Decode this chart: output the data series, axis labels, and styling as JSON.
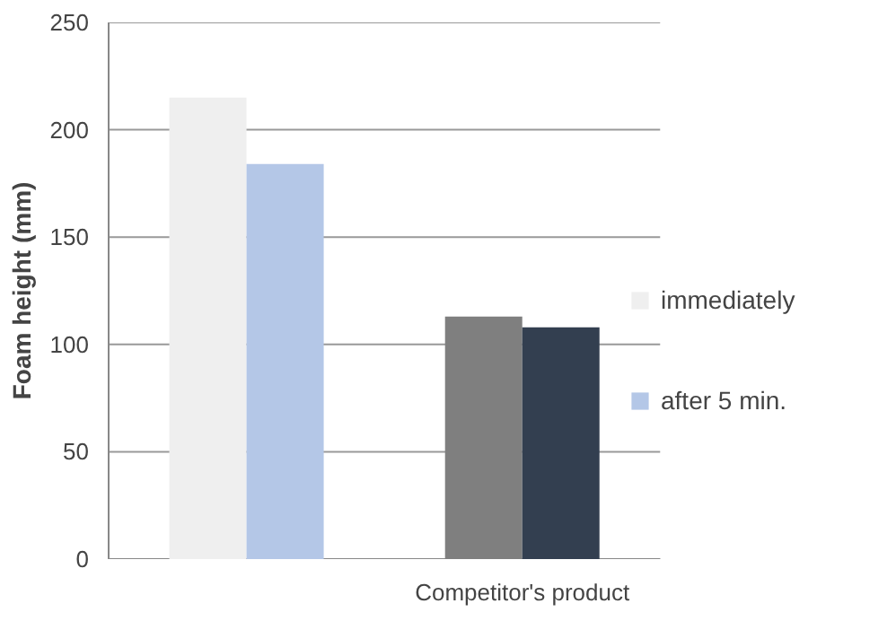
{
  "chart_data": {
    "type": "bar",
    "categories": [
      null,
      "Competitor's product"
    ],
    "ylabel": "Foam height (mm)",
    "ylim": [
      0,
      250
    ],
    "yticks": [
      0,
      50,
      100,
      150,
      200,
      250
    ],
    "grid": "y",
    "legend": "right",
    "series": [
      {
        "name": "immediately",
        "colors": [
          "#efefef",
          "#7f7f7f"
        ],
        "values": [
          215,
          113
        ]
      },
      {
        "name": "after 5 min.",
        "colors": [
          "#b4c7e7",
          "#333f50"
        ],
        "values": [
          184,
          108
        ]
      }
    ]
  }
}
